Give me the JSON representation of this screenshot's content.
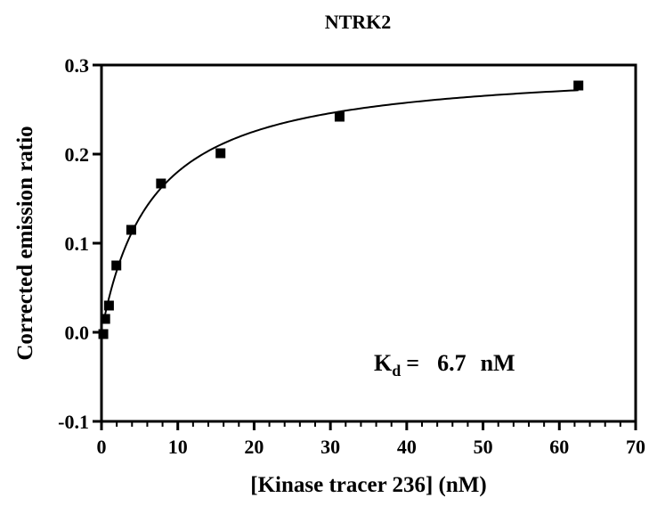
{
  "chart_data": {
    "type": "scatter",
    "title": "NTRK2",
    "xlabel": "[Kinase tracer 236] (nM)",
    "ylabel": "Corrected emission ratio",
    "xlim": [
      0,
      70
    ],
    "ylim": [
      -0.1,
      0.3
    ],
    "x_ticks": [
      "0",
      "10",
      "20",
      "30",
      "40",
      "50",
      "60",
      "70"
    ],
    "y_ticks": [
      "-0.1",
      "0.0",
      "0.1",
      "0.2",
      "0.3"
    ],
    "grid": false,
    "series": [
      {
        "marker": "square",
        "color": "#000000",
        "points": [
          {
            "x": 0.24,
            "y": -0.002
          },
          {
            "x": 0.49,
            "y": 0.015
          },
          {
            "x": 0.98,
            "y": 0.03
          },
          {
            "x": 1.95,
            "y": 0.075
          },
          {
            "x": 3.9,
            "y": 0.115
          },
          {
            "x": 7.8,
            "y": 0.167
          },
          {
            "x": 15.6,
            "y": 0.201
          },
          {
            "x": 31.2,
            "y": 0.242
          },
          {
            "x": 62.5,
            "y": 0.277
          }
        ]
      }
    ],
    "fit": {
      "type": "one-site saturation binding",
      "bmax": 0.3009,
      "kd": 6.7,
      "x_range": [
        0.24,
        62.5
      ],
      "color": "#000000"
    },
    "annotation": {
      "k_symbol": "K",
      "k_subscript": "d",
      "equals": "=",
      "value": "6.7",
      "unit": "nM"
    }
  }
}
